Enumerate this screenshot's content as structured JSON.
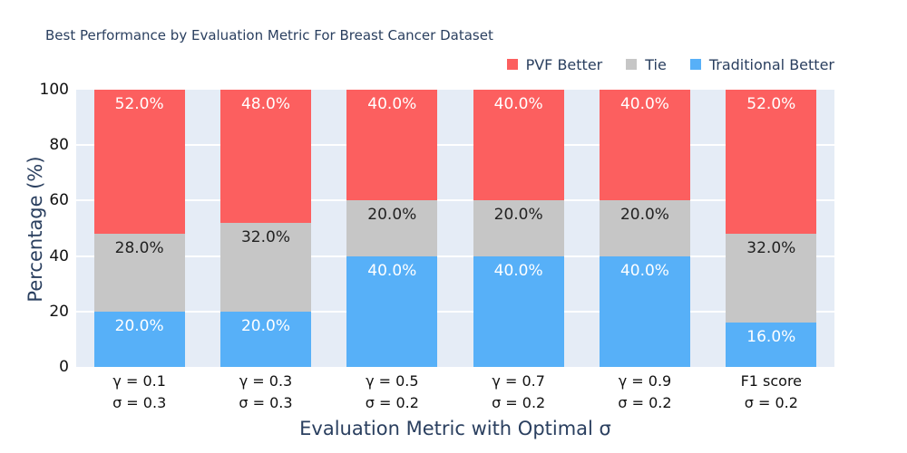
{
  "title": "Best Performance by Evaluation Metric For Breast Cancer Dataset",
  "colors": {
    "pvf": "#FC5F5F",
    "tie": "#C6C6C6",
    "traditional": "#57B0F8",
    "plot_background": "#E5ECF6",
    "gridline": "#FFFFFF",
    "axis_title_text": "#2A3F5F",
    "tick_text": "#111111"
  },
  "legend": {
    "items": [
      {
        "label": "PVF Better",
        "color": "#FC5F5F"
      },
      {
        "label": "Tie",
        "color": "#C6C6C6"
      },
      {
        "label": "Traditional Better",
        "color": "#57B0F8"
      }
    ]
  },
  "y_axis": {
    "title": "Percentage (%)",
    "ticks": [
      "100",
      "80",
      "60",
      "40",
      "20",
      "0"
    ]
  },
  "x_axis": {
    "title": "Evaluation Metric with Optimal σ"
  },
  "chart_data": {
    "type": "bar",
    "stacked": true,
    "title": "Best Performance by Evaluation Metric For Breast Cancer Dataset",
    "xlabel": "Evaluation Metric with Optimal σ",
    "ylabel": "Percentage (%)",
    "ylim": [
      0,
      100
    ],
    "grid": true,
    "legend_position": "top-right",
    "categories": [
      "γ = 0.1 / σ = 0.3",
      "γ = 0.3 / σ = 0.3",
      "γ = 0.5 / σ = 0.2",
      "γ = 0.7 / σ = 0.2",
      "γ = 0.9 / σ = 0.2",
      "F1 score / σ = 0.2"
    ],
    "series": [
      {
        "name": "PVF Better",
        "color": "#FC5F5F",
        "values": [
          52,
          48,
          40,
          40,
          40,
          52
        ]
      },
      {
        "name": "Tie",
        "color": "#C6C6C6",
        "values": [
          28,
          32,
          20,
          20,
          20,
          32
        ]
      },
      {
        "name": "Traditional Better",
        "color": "#57B0F8",
        "values": [
          20,
          20,
          40,
          40,
          40,
          16
        ]
      }
    ],
    "groups": [
      {
        "tick1": "γ = 0.1",
        "tick2": "σ = 0.3",
        "pvf": {
          "value": 52,
          "label": "52.0%"
        },
        "tie": {
          "value": 28,
          "label": "28.0%"
        },
        "trad": {
          "value": 20,
          "label": "20.0%"
        }
      },
      {
        "tick1": "γ = 0.3",
        "tick2": "σ = 0.3",
        "pvf": {
          "value": 48,
          "label": "48.0%"
        },
        "tie": {
          "value": 32,
          "label": "32.0%"
        },
        "trad": {
          "value": 20,
          "label": "20.0%"
        }
      },
      {
        "tick1": "γ = 0.5",
        "tick2": "σ = 0.2",
        "pvf": {
          "value": 40,
          "label": "40.0%"
        },
        "tie": {
          "value": 20,
          "label": "20.0%"
        },
        "trad": {
          "value": 40,
          "label": "40.0%"
        }
      },
      {
        "tick1": "γ = 0.7",
        "tick2": "σ = 0.2",
        "pvf": {
          "value": 40,
          "label": "40.0%"
        },
        "tie": {
          "value": 20,
          "label": "20.0%"
        },
        "trad": {
          "value": 40,
          "label": "40.0%"
        }
      },
      {
        "tick1": "γ = 0.9",
        "tick2": "σ = 0.2",
        "pvf": {
          "value": 40,
          "label": "40.0%"
        },
        "tie": {
          "value": 20,
          "label": "20.0%"
        },
        "trad": {
          "value": 40,
          "label": "40.0%"
        }
      },
      {
        "tick1": "F1 score",
        "tick2": "σ = 0.2",
        "pvf": {
          "value": 52,
          "label": "52.0%"
        },
        "tie": {
          "value": 32,
          "label": "32.0%"
        },
        "trad": {
          "value": 16,
          "label": "16.0%"
        }
      }
    ]
  }
}
